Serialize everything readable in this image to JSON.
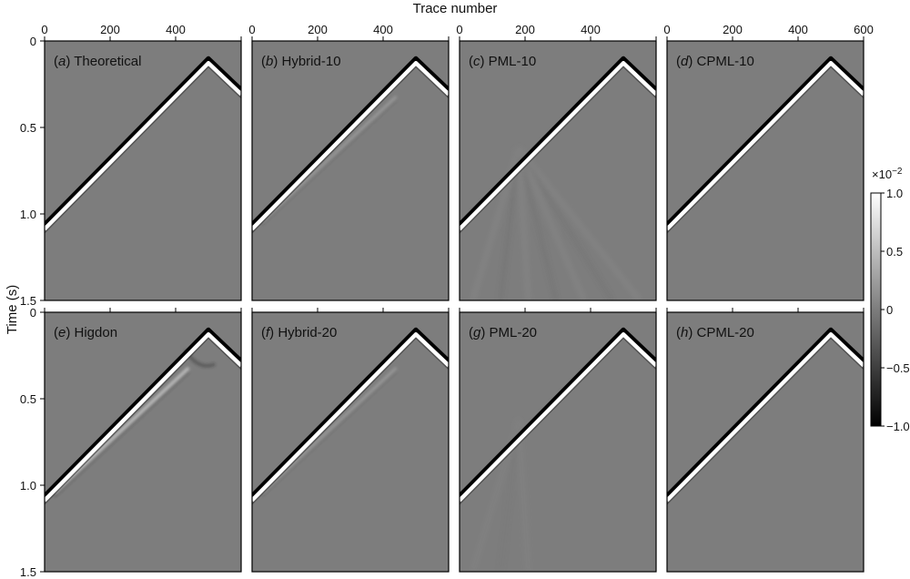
{
  "chart_data": {
    "type": "heatmap",
    "x_title": "Trace number",
    "y_title": "Time (s)",
    "x_ticks": [
      "0",
      "200",
      "400",
      "600"
    ],
    "x_tick_values": [
      0,
      200,
      400,
      600
    ],
    "y_ticks": [
      "0",
      "0.5",
      "1.0",
      "1.5"
    ],
    "y_tick_values": [
      0,
      0.5,
      1.0,
      1.5
    ],
    "xlim": [
      0,
      600
    ],
    "ylim": [
      0,
      1.5
    ],
    "colorbar": {
      "multiplier": "×10",
      "exponent": "−2",
      "ticks": [
        "1.0",
        "0.5",
        "0",
        "−0.5",
        "−1.0"
      ],
      "tick_values": [
        1.0,
        0.5,
        0,
        -0.5,
        -1.0
      ],
      "range": [
        -1.0,
        1.0
      ],
      "colormap": "gray"
    },
    "colors": {
      "background_gray": "#7d7d7d",
      "positive": "#ffffff",
      "negative": "#000000"
    },
    "wavefront": {
      "apex_trace": 500,
      "apex_time": 0.12,
      "left_time_at_trace0": 1.08,
      "right_time_at_trace600": 0.3
    },
    "panels": [
      {
        "id": "a",
        "name": "Theoretical",
        "artifact": "none"
      },
      {
        "id": "b",
        "name": "Hybrid-10",
        "artifact": "faint_reflection"
      },
      {
        "id": "c",
        "name": "PML-10",
        "artifact": "strong_fan"
      },
      {
        "id": "d",
        "name": "CPML-10",
        "artifact": "none"
      },
      {
        "id": "e",
        "name": "Higdon",
        "artifact": "strong_reflection"
      },
      {
        "id": "f",
        "name": "Hybrid-20",
        "artifact": "faint_reflection"
      },
      {
        "id": "g",
        "name": "PML-20",
        "artifact": "weak_fan"
      },
      {
        "id": "h",
        "name": "CPML-20",
        "artifact": "none"
      }
    ]
  }
}
